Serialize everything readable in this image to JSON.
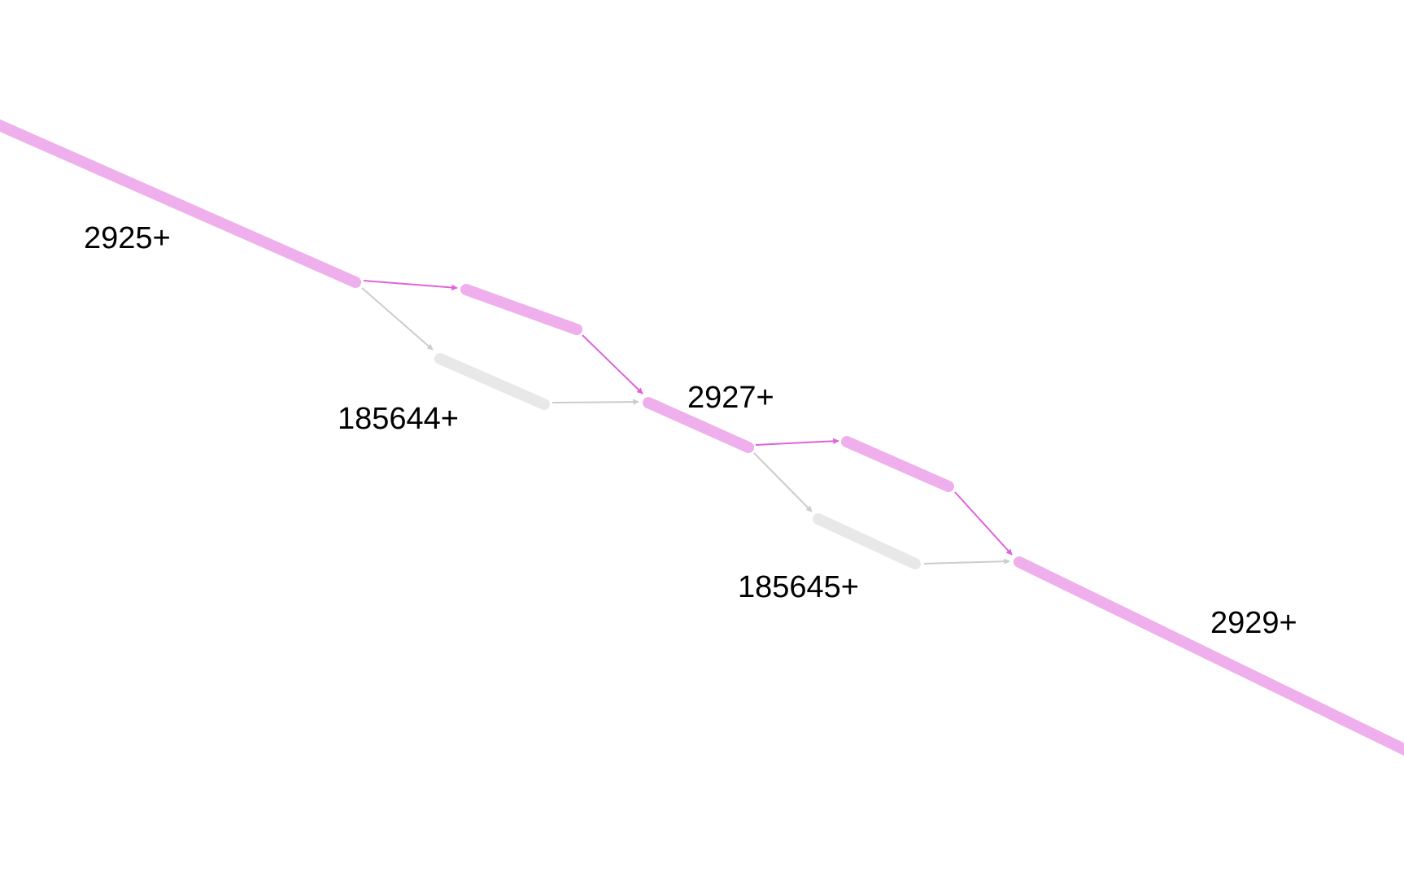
{
  "graph": {
    "colors": {
      "path_node": "#efaeec",
      "path_edge": "#e062dc",
      "other_node": "#e8e8e8",
      "other_edge": "#cccccc",
      "label": "#000000",
      "background": "#ffffff"
    },
    "nodes": [
      {
        "id": "n2925",
        "label": "2925+",
        "on_path": true
      },
      {
        "id": "n2926",
        "label": "",
        "on_path": true
      },
      {
        "id": "n185644",
        "label": "185644+",
        "on_path": false
      },
      {
        "id": "n2927",
        "label": "2927+",
        "on_path": true
      },
      {
        "id": "n2928",
        "label": "",
        "on_path": true
      },
      {
        "id": "n185645",
        "label": "185645+",
        "on_path": false
      },
      {
        "id": "n2929",
        "label": "2929+",
        "on_path": true
      }
    ],
    "edges": [
      {
        "from": "n2925",
        "to": "n2926",
        "on_path": true
      },
      {
        "from": "n2925",
        "to": "n185644",
        "on_path": false
      },
      {
        "from": "n2926",
        "to": "n2927",
        "on_path": true
      },
      {
        "from": "n185644",
        "to": "n2927",
        "on_path": false
      },
      {
        "from": "n2927",
        "to": "n2928",
        "on_path": true
      },
      {
        "from": "n2927",
        "to": "n185645",
        "on_path": false
      },
      {
        "from": "n2928",
        "to": "n2929",
        "on_path": true
      },
      {
        "from": "n185645",
        "to": "n2929",
        "on_path": false
      }
    ]
  }
}
